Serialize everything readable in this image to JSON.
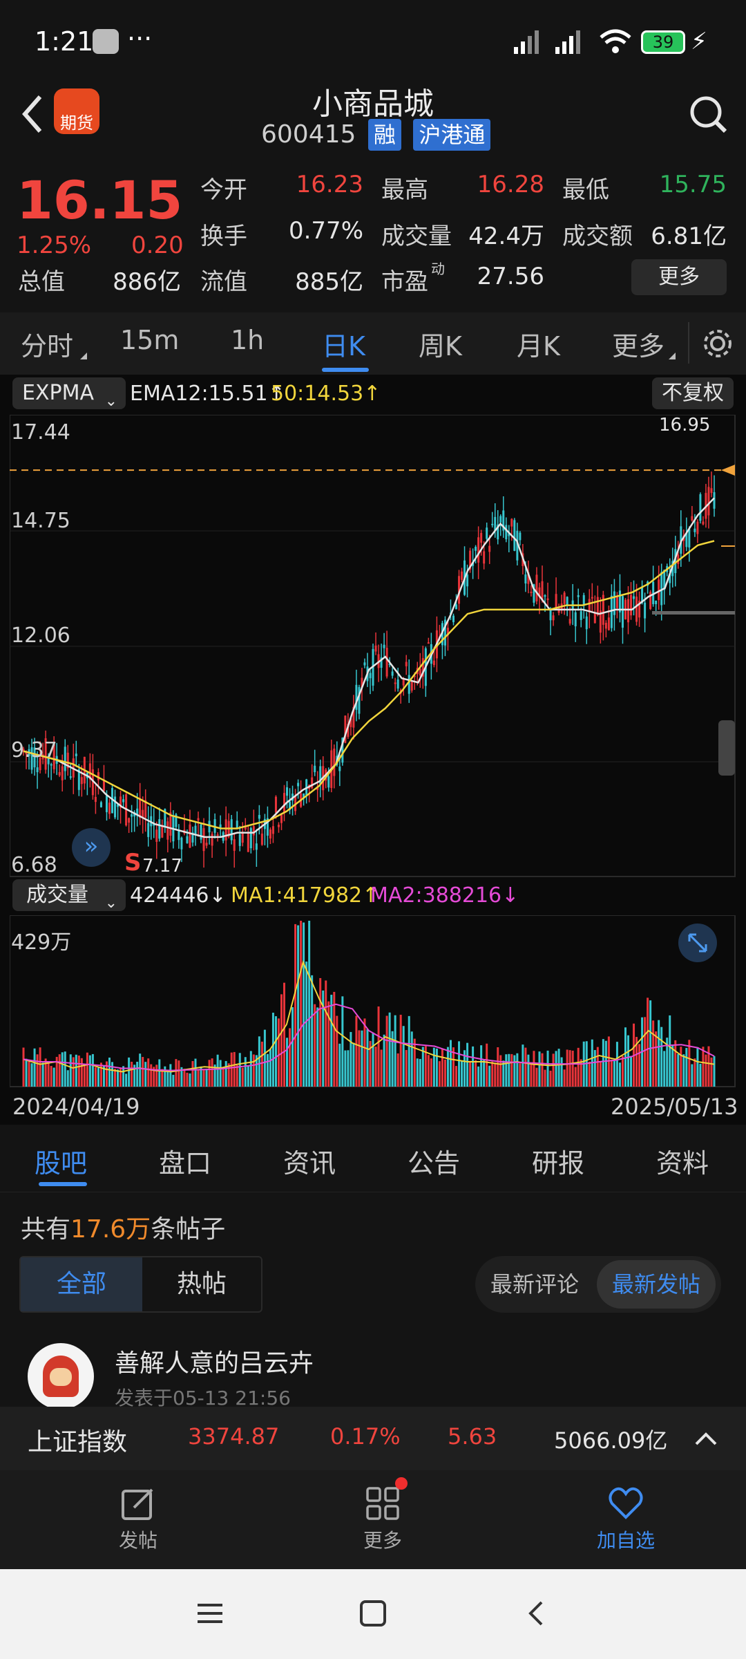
{
  "status": {
    "time": "1:21",
    "dots": "···",
    "battery": "39"
  },
  "header": {
    "title": "小商品城",
    "code": "600415",
    "badge1": "融",
    "badge2": "沪港通",
    "logo_text": "期货"
  },
  "quote": {
    "price": "16.15",
    "pct": "1.25%",
    "chg": "0.20",
    "total_label": "总值",
    "total_value": "886亿",
    "open_label": "今开",
    "open_value": "16.23",
    "high_label": "最高",
    "high_value": "16.28",
    "low_label": "最低",
    "low_value": "15.75",
    "turnover_label": "换手",
    "turnover_value": "0.77%",
    "vol_label": "成交量",
    "vol_value": "42.4万",
    "amount_label": "成交额",
    "amount_value": "6.81亿",
    "float_label": "流值",
    "float_value": "885亿",
    "pe_label": "市盈",
    "pe_sup": "动",
    "pe_value": "27.56",
    "more_btn": "更多"
  },
  "tabs": [
    "分时",
    "15m",
    "1h",
    "日K",
    "周K",
    "月K",
    "更多"
  ],
  "chart": {
    "indicator": "EXPMA",
    "ema12": "EMA12:15.51↑",
    "ema50": "50:14.53↑",
    "adjust_btn": "不复权",
    "y_ticks": [
      "17.44",
      "14.75",
      "12.06",
      "9.37",
      "6.68"
    ],
    "max_label": "16.95",
    "min_label": "7.17",
    "signal": "S",
    "vol_indicator": "成交量",
    "vol_value": "424446↓",
    "ma1": "MA1:417982↑",
    "ma2": "MA2:388216↓",
    "vol_max": "429万",
    "date_start": "2024/04/19",
    "date_end": "2025/05/13",
    "colors": {
      "up": "#e8343a",
      "down": "#37c6cf",
      "ema12": "#e6e6e6",
      "ema50": "#f1d53c",
      "ma2": "#e54bd7"
    }
  },
  "subtabs": [
    "股吧",
    "盘口",
    "资讯",
    "公告",
    "研报",
    "资料"
  ],
  "forum": {
    "count_prefix": "共有",
    "count": "17.6万",
    "count_suffix": "条帖子",
    "filter_all": "全部",
    "filter_hot": "热帖",
    "sort_comment": "最新评论",
    "sort_post": "最新发帖",
    "user": "善解人意的吕云卉",
    "post_time": "发表于05-13 21:56"
  },
  "index_bar": {
    "name": "上证指数",
    "value": "3374.87",
    "pct": "0.17%",
    "chg": "5.63",
    "amount": "5066.09亿"
  },
  "bottom_nav": {
    "post": "发帖",
    "more": "更多",
    "watch": "加自选"
  },
  "chart_data": {
    "type": "candlestick",
    "x_range": [
      "2024/04/19",
      "2025/05/13"
    ],
    "ylim": [
      6.68,
      17.44
    ],
    "y_ticks": [
      17.44,
      14.75,
      12.06,
      9.37,
      6.68
    ],
    "series": [
      {
        "name": "EMA12",
        "values": [
          9.6,
          9.5,
          9.4,
          9.2,
          9.0,
          8.6,
          8.3,
          8.1,
          7.9,
          7.8,
          7.7,
          7.6,
          7.6,
          7.7,
          7.7,
          8.0,
          8.4,
          8.7,
          8.9,
          9.3,
          10.5,
          11.5,
          11.8,
          11.3,
          11.2,
          12.0,
          12.8,
          13.8,
          14.4,
          14.9,
          14.5,
          13.4,
          12.9,
          12.9,
          12.9,
          12.8,
          12.9,
          12.9,
          13.2,
          13.4,
          14.5,
          15.1,
          15.5
        ]
      },
      {
        "name": "50",
        "values": [
          9.6,
          9.5,
          9.4,
          9.3,
          9.1,
          8.9,
          8.7,
          8.5,
          8.3,
          8.1,
          8.0,
          7.9,
          7.8,
          7.8,
          7.9,
          8.0,
          8.2,
          8.5,
          8.8,
          9.3,
          9.9,
          10.3,
          10.6,
          11.0,
          11.5,
          12.0,
          12.4,
          12.8,
          12.9,
          12.9,
          12.9,
          12.9,
          12.9,
          13.0,
          13.0,
          13.1,
          13.2,
          13.3,
          13.5,
          13.8,
          14.1,
          14.4,
          14.5
        ]
      }
    ],
    "max_value": 16.95,
    "min_value": 7.17,
    "current_value": 16.15,
    "volume": {
      "max": "429万",
      "ma1": 417982,
      "ma2": 388216,
      "current": 424446
    }
  }
}
